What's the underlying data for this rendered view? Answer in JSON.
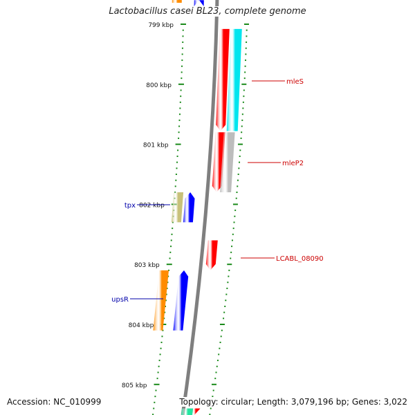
{
  "title": "Lactobacillus casei BL23, complete genome",
  "footer": {
    "accession": "Accession: NC_010999",
    "summary": "Topology: circular; Length: 3,079,196 bp; Genes: 3,022"
  },
  "ticks": [
    {
      "label": "799 kbp",
      "kbp": 799
    },
    {
      "label": "800 kbp",
      "kbp": 800
    },
    {
      "label": "801 kbp",
      "kbp": 801
    },
    {
      "label": "802 kbp",
      "kbp": 802
    },
    {
      "label": "803 kbp",
      "kbp": 803
    },
    {
      "label": "804 kbp",
      "kbp": 804
    },
    {
      "label": "805 kbp",
      "kbp": 805
    }
  ],
  "genes": [
    {
      "name": "mleS",
      "strand": "+",
      "start_kbp": 799.08,
      "end_kbp": 800.78,
      "color": "#ff0000",
      "label_color": "#cc0000"
    },
    {
      "name": "mleP2",
      "strand": "+",
      "start_kbp": 800.8,
      "end_kbp": 801.8,
      "color": "#ff0000",
      "label_color": "#cc0000"
    },
    {
      "name": "LCABL_08090",
      "strand": "+",
      "start_kbp": 802.6,
      "end_kbp": 803.1,
      "color": "#ff0000",
      "label_color": "#cc0000"
    },
    {
      "name": "tpx",
      "strand": "-",
      "start_kbp": 801.8,
      "end_kbp": 802.3,
      "color": "#0000ff",
      "label_color": "#0000aa"
    },
    {
      "name": "upsR",
      "strand": "-",
      "start_kbp": 803.1,
      "end_kbp": 804.1,
      "color": "#0000ff",
      "label_color": "#0000aa"
    },
    {
      "name": "",
      "strand": "+",
      "start_kbp": 805.4,
      "end_kbp": 806.5,
      "color": "#ff0000",
      "label_color": ""
    },
    {
      "name": "",
      "strand": "-",
      "start_kbp": 798.0,
      "end_kbp": 798.6,
      "color": "#0000ff",
      "label_color": ""
    }
  ],
  "cog_colors": {
    "cyan": "#00e5ee",
    "grey": "#bdbdbd",
    "olive": "#c8c17a",
    "orange": "#ff8c00",
    "green": "#22e6a0",
    "backbone": "#7f7f7f",
    "tick": "#1a8a1a"
  }
}
